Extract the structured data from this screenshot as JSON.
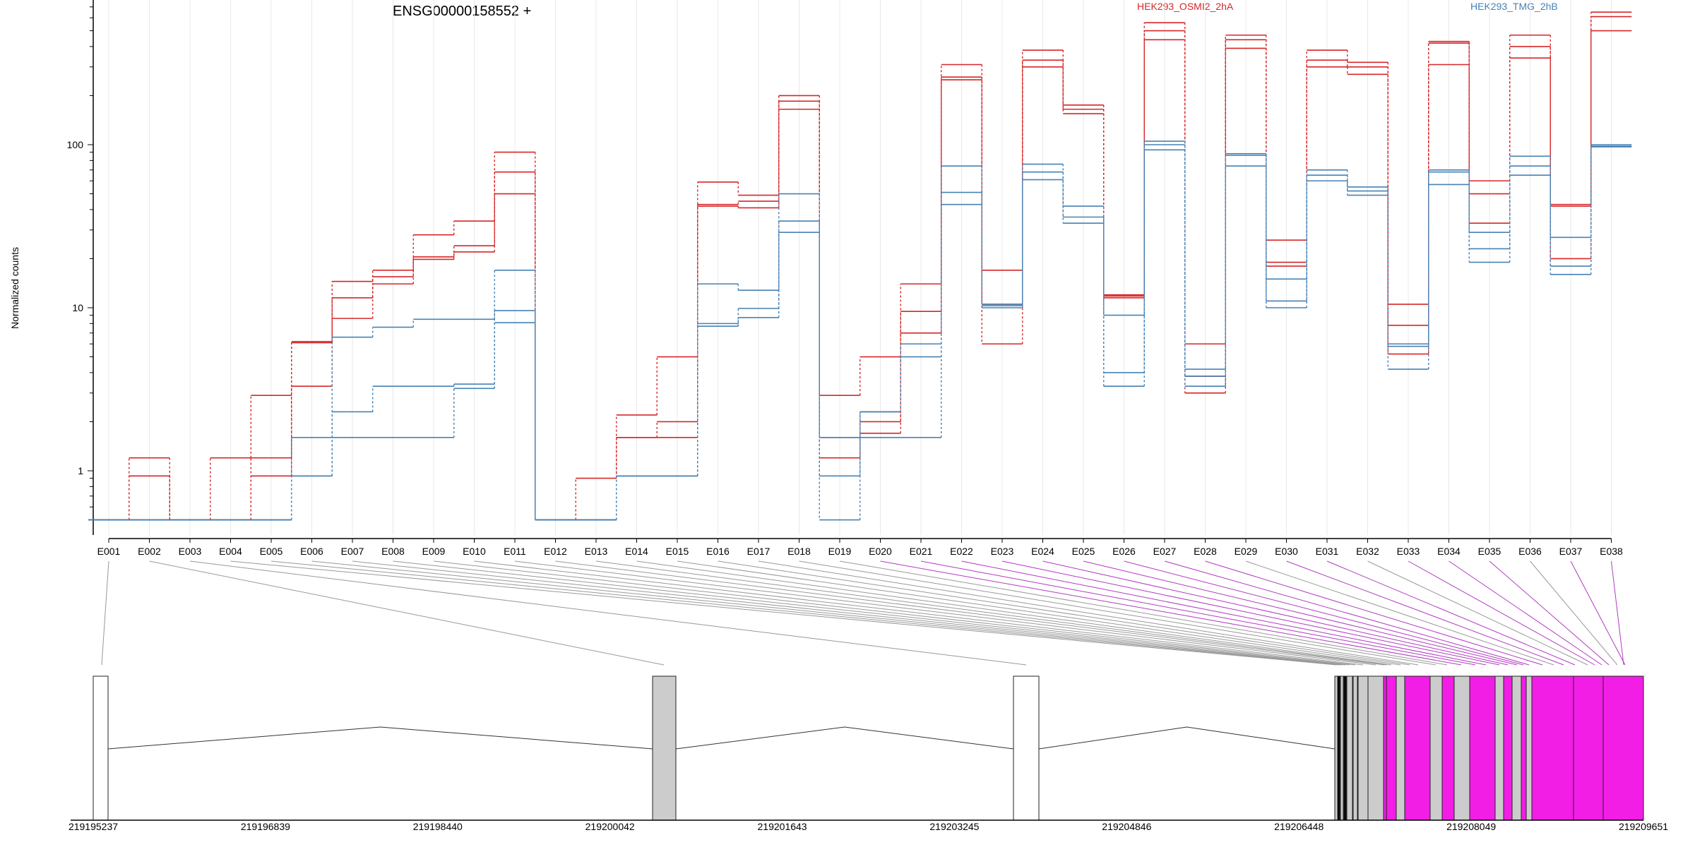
{
  "chart_data": {
    "type": "line",
    "title": "ENSG00000158552 +",
    "ylabel": "Normalized counts",
    "yscale": "log",
    "ylim": [
      0.5,
      800
    ],
    "yticks": [
      1,
      10,
      100
    ],
    "ytick_labels": [
      "1",
      "10",
      "100"
    ],
    "legend": {
      "placement": "top",
      "entries": [
        {
          "name": "HEK293_OSMI2_2hA",
          "color": "#d62728"
        },
        {
          "name": "HEK293_TMG_2hB",
          "color": "#4682b4"
        }
      ]
    },
    "categories": [
      "E001",
      "E002",
      "E003",
      "E004",
      "E005",
      "E006",
      "E007",
      "E008",
      "E009",
      "E010",
      "E011",
      "E012",
      "E013",
      "E014",
      "E015",
      "E016",
      "E017",
      "E018",
      "E019",
      "E020",
      "E021",
      "E022",
      "E023",
      "E024",
      "E025",
      "E026",
      "E027",
      "E028",
      "E029",
      "E030",
      "E031",
      "E032",
      "E033",
      "E034",
      "E035",
      "E036",
      "E037",
      "E038"
    ],
    "series": [
      {
        "group": "HEK293_OSMI2_2hA",
        "color": "#d62728",
        "values": [
          0.5,
          1.2,
          0.5,
          1.2,
          2.9,
          6.2,
          14.5,
          17.0,
          28.0,
          34.0,
          90,
          0.5,
          0.9,
          2.2,
          5.0,
          59,
          49,
          200,
          2.9,
          5.0,
          14.0,
          310,
          17,
          380,
          175,
          12.0,
          560,
          6.0,
          470,
          26,
          380,
          320,
          10.5,
          430,
          60,
          470,
          43,
          650
        ]
      },
      {
        "group": "HEK293_OSMI2_2hA",
        "color": "#d62728",
        "values": [
          0.5,
          0.93,
          0.5,
          0.5,
          1.2,
          3.3,
          11.5,
          15.5,
          20.5,
          24.0,
          68,
          0.5,
          0.5,
          1.6,
          2.0,
          43,
          45,
          185,
          1.6,
          2.0,
          9.5,
          260,
          6.0,
          330,
          165,
          11.5,
          500,
          3.8,
          440,
          19,
          330,
          300,
          7.8,
          420,
          50,
          400,
          20,
          610
        ]
      },
      {
        "group": "HEK293_OSMI2_2hA",
        "color": "#d62728",
        "values": [
          0.5,
          0.5,
          0.5,
          0.5,
          0.93,
          6.1,
          8.6,
          14.0,
          19.8,
          22.0,
          50,
          0.5,
          0.5,
          1.6,
          1.6,
          42,
          41,
          165,
          1.2,
          1.7,
          7.0,
          250,
          10.5,
          300,
          155,
          11.8,
          440,
          3.0,
          390,
          18,
          300,
          270,
          5.2,
          310,
          33,
          340,
          42,
          500
        ]
      },
      {
        "group": "HEK293_TMG_2hB",
        "color": "#4682b4",
        "values": [
          0.5,
          0.5,
          0.5,
          0.5,
          0.5,
          1.6,
          6.6,
          7.6,
          8.5,
          8.5,
          17,
          0.5,
          0.5,
          0.93,
          0.93,
          14.0,
          12.8,
          50,
          0.5,
          2.3,
          6.0,
          74,
          10.5,
          76,
          42,
          4.0,
          105,
          4.2,
          88,
          15,
          70,
          55,
          6.0,
          70,
          29,
          85,
          27,
          100
        ]
      },
      {
        "group": "HEK293_TMG_2hB",
        "color": "#4682b4",
        "values": [
          0.5,
          0.5,
          0.5,
          0.5,
          0.5,
          0.93,
          2.3,
          3.3,
          3.3,
          3.4,
          9.6,
          0.5,
          0.5,
          0.93,
          0.93,
          8.0,
          9.9,
          34,
          1.6,
          2.3,
          5.0,
          51,
          10.0,
          68,
          36,
          9.0,
          100,
          3.8,
          86,
          11,
          65,
          52,
          5.8,
          68,
          23,
          74,
          18,
          98
        ]
      },
      {
        "group": "HEK293_TMG_2hB",
        "color": "#4682b4",
        "values": [
          0.5,
          0.5,
          0.5,
          0.5,
          0.5,
          0.93,
          1.6,
          1.6,
          1.6,
          3.2,
          8.1,
          0.5,
          0.5,
          0.93,
          0.93,
          7.7,
          8.7,
          29,
          0.93,
          1.6,
          1.6,
          43,
          10.3,
          61,
          33,
          3.3,
          93,
          3.3,
          74,
          10,
          60,
          49,
          4.2,
          57,
          19,
          65,
          16,
          97
        ]
      }
    ],
    "genomic_axis": {
      "tick_labels": [
        "219195237",
        "219196839",
        "219198440",
        "219200042",
        "219201643",
        "219203245",
        "219204846",
        "219206448",
        "219208049",
        "219209651"
      ]
    }
  }
}
